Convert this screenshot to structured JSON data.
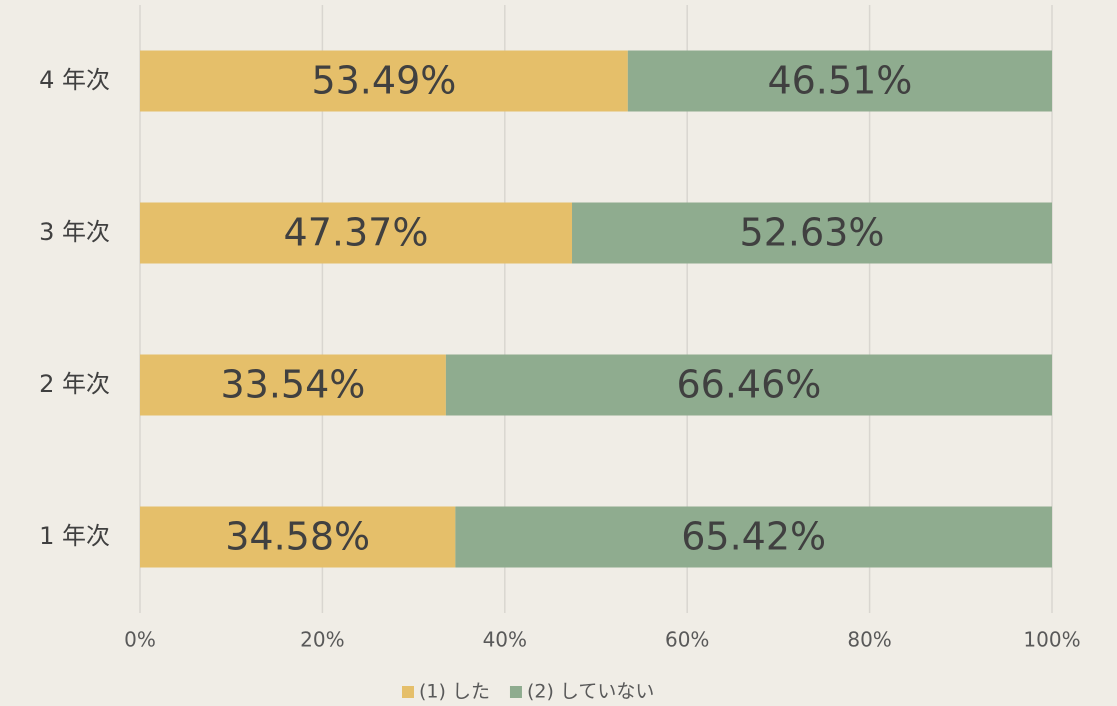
{
  "chart_data": {
    "type": "stacked-bar-horizontal",
    "categories": [
      "4 年次",
      "3 年次",
      "2 年次",
      "1 年次"
    ],
    "series": [
      {
        "name": "(1) した",
        "color": "#e5bf6a",
        "values": [
          53.49,
          47.37,
          33.54,
          34.58
        ],
        "value_labels": [
          "53.49%",
          "47.37%",
          "33.54%",
          "34.58%"
        ]
      },
      {
        "name": "(2) していない",
        "color": "#8fac8f",
        "values": [
          46.51,
          52.63,
          66.46,
          65.42
        ],
        "value_labels": [
          "46.51%",
          "52.63%",
          "66.46%",
          "65.42%"
        ]
      }
    ],
    "xlim": [
      0,
      100
    ],
    "xticks": [
      {
        "value": 0,
        "label": "0%"
      },
      {
        "value": 20,
        "label": "20%"
      },
      {
        "value": 40,
        "label": "40%"
      },
      {
        "value": 60,
        "label": "60%"
      },
      {
        "value": 80,
        "label": "80%"
      },
      {
        "value": 100,
        "label": "100%"
      }
    ],
    "grid": true,
    "legend": "bottom"
  }
}
